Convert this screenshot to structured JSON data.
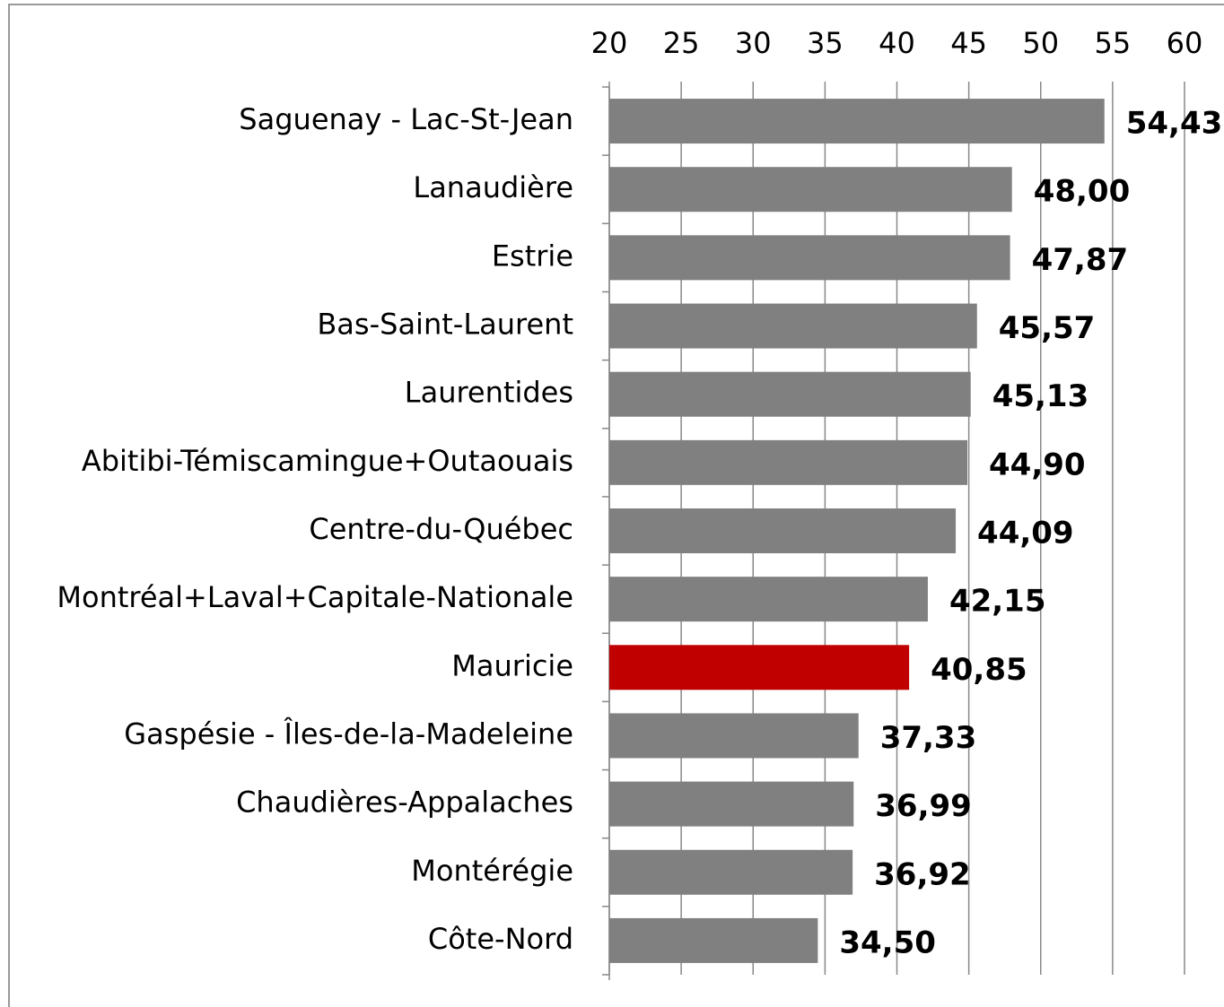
{
  "chart_data": {
    "type": "bar",
    "orientation": "horizontal",
    "categories": [
      "Saguenay - Lac-St-Jean",
      "Lanaudière",
      "Estrie",
      "Bas-Saint-Laurent",
      "Laurentides",
      "Abitibi-Témiscamingue+Outaouais",
      "Centre-du-Québec",
      "Montréal+Laval+Capitale-Nationale",
      "Mauricie",
      "Gaspésie - Îles-de-la-Madeleine",
      "Chaudières-Appalaches",
      "Montérégie",
      "Côte-Nord"
    ],
    "values": [
      54.43,
      48.0,
      47.87,
      45.57,
      45.13,
      44.9,
      44.09,
      42.15,
      40.85,
      37.33,
      36.99,
      36.92,
      34.5
    ],
    "value_labels": [
      "54,43",
      "48,00",
      "47,87",
      "45,57",
      "45,13",
      "44,90",
      "44,09",
      "42,15",
      "40,85",
      "37,33",
      "36,99",
      "36,92",
      "34,50"
    ],
    "colors": [
      "#808080",
      "#808080",
      "#808080",
      "#808080",
      "#808080",
      "#808080",
      "#808080",
      "#808080",
      "#c00000",
      "#808080",
      "#808080",
      "#808080",
      "#808080"
    ],
    "xlim": [
      20,
      60
    ],
    "xticks": [
      20,
      25,
      30,
      35,
      40,
      45,
      50,
      55,
      60
    ],
    "grid": true
  }
}
